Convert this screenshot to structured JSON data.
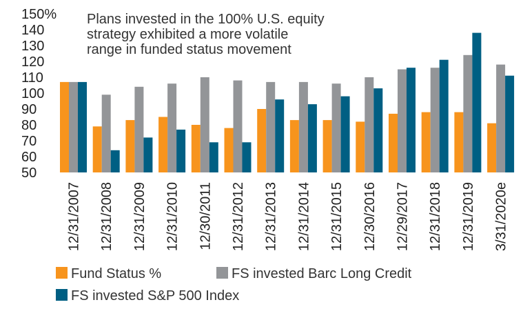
{
  "chart_data": {
    "type": "bar",
    "annotation": [
      "Plans invested in the 100% U.S. equity",
      "strategy exhibited a more volatile",
      "range in funded status movement"
    ],
    "categories": [
      "12/31/2007",
      "12/31/2008",
      "12/31/2009",
      "12/31/2010",
      "12/30/2011",
      "12/31/2012",
      "12/31/2013",
      "12/31/2014",
      "12/31/2015",
      "12/30/2016",
      "12/29/2017",
      "12/31/2018",
      "12/31/2019",
      "3/31/2020e"
    ],
    "y_ticks": [
      "150%",
      "140",
      "130",
      "120",
      "110",
      "100",
      "90",
      "80",
      "70",
      "60",
      "50"
    ],
    "ylim": [
      50,
      150
    ],
    "grid": false,
    "legend_position": "bottom",
    "series": [
      {
        "name": "Fund Status %",
        "color": "#F7941D",
        "values": [
          107,
          79,
          83,
          85,
          80,
          78,
          90,
          83,
          83,
          82,
          87,
          88,
          88,
          81
        ]
      },
      {
        "name": "FS invested Barc Long Credit",
        "color": "#939598",
        "values": [
          107,
          99,
          104,
          106,
          110,
          108,
          107,
          107,
          106,
          110,
          115,
          116,
          124,
          118
        ]
      },
      {
        "name": "FS invested S&P 500 Index",
        "color": "#005F83",
        "values": [
          107,
          64,
          72,
          77,
          69,
          69,
          96,
          93,
          98,
          103,
          116,
          121,
          138,
          111
        ]
      }
    ]
  }
}
